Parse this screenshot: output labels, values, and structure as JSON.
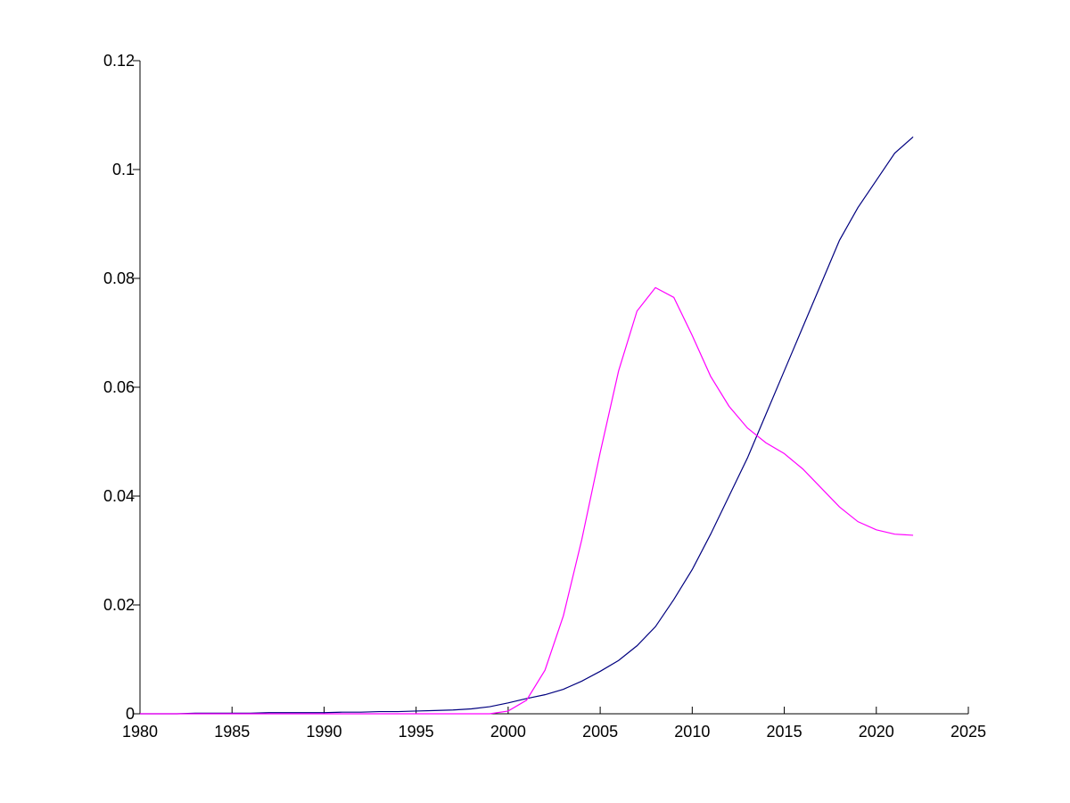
{
  "chart_data": {
    "type": "line",
    "x": [
      1980,
      1981,
      1982,
      1983,
      1984,
      1985,
      1986,
      1987,
      1988,
      1989,
      1990,
      1991,
      1992,
      1993,
      1994,
      1995,
      1996,
      1997,
      1998,
      1999,
      2000,
      2001,
      2002,
      2003,
      2004,
      2005,
      2006,
      2007,
      2008,
      2009,
      2010,
      2011,
      2012,
      2013,
      2014,
      2015,
      2016,
      2017,
      2018,
      2019,
      2020,
      2021,
      2022
    ],
    "series": [
      {
        "color": "#00007f",
        "values": [
          0,
          0,
          0,
          0.0001,
          0.0001,
          0.0001,
          0.0001,
          0.0002,
          0.0002,
          0.0002,
          0.0002,
          0.0003,
          0.0003,
          0.0004,
          0.0004,
          0.0005,
          0.0006,
          0.0007,
          0.0009,
          0.0013,
          0.002,
          0.0028,
          0.0035,
          0.0045,
          0.006,
          0.0078,
          0.0098,
          0.0125,
          0.016,
          0.021,
          0.0265,
          0.033,
          0.04,
          0.047,
          0.055,
          0.063,
          0.071,
          0.079,
          0.087,
          0.093,
          0.098,
          0.103,
          0.106
        ]
      },
      {
        "color": "#ff00ff",
        "values": [
          0,
          0,
          0,
          0,
          0,
          0,
          0,
          0,
          0,
          0,
          0,
          0,
          0,
          0,
          0,
          0,
          0,
          0,
          0,
          0,
          0.0005,
          0.0025,
          0.008,
          0.018,
          0.032,
          0.048,
          0.063,
          0.074,
          0.0783,
          0.0765,
          0.0695,
          0.062,
          0.0565,
          0.0525,
          0.0498,
          0.0478,
          0.045,
          0.0415,
          0.038,
          0.0353,
          0.0338,
          0.033,
          0.0328
        ]
      }
    ],
    "xlim": [
      1980,
      2025
    ],
    "xticks": [
      1980,
      1985,
      1990,
      1995,
      2000,
      2005,
      2010,
      2015,
      2020,
      2025
    ],
    "ylim": [
      0,
      0.12
    ],
    "yticks": [
      0,
      0.02,
      0.04,
      0.06,
      0.08,
      0.1,
      0.12
    ]
  }
}
